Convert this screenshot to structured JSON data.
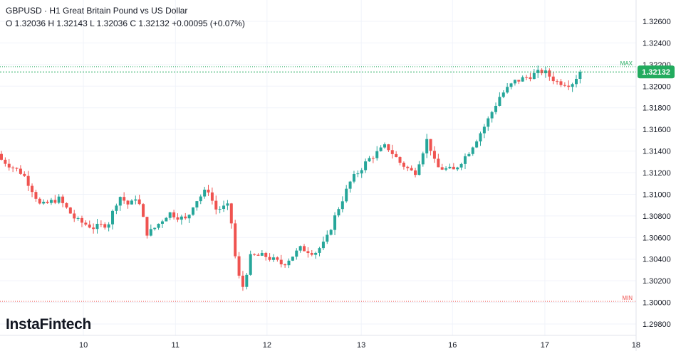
{
  "header": {
    "title": "GBPUSD · H1 Great Britain Pound vs US Dollar",
    "ohlc": "O 1.32036 H 1.32143 L 1.32036 C 1.32132  +0.00095 (+0.07%)"
  },
  "logo": "InstaFintech",
  "colors": {
    "up": "#26a69a",
    "down": "#ef5350",
    "grid": "#f0f3fa",
    "price_tag": "#22ab5e",
    "min": "#ef5350",
    "max": "#22ab5e"
  },
  "chart_data": {
    "type": "candlestick",
    "title": "GBPUSD · H1",
    "ylim": [
      1.2972,
      1.3278
    ],
    "y_ticks": [
      "1.32600",
      "1.32400",
      "1.32200",
      "1.32000",
      "1.31800",
      "1.31600",
      "1.31400",
      "1.31200",
      "1.31000",
      "1.30800",
      "1.30600",
      "1.30400",
      "1.30200",
      "1.30000",
      "1.29800"
    ],
    "x_ticks": [
      {
        "label": "10",
        "hour": 21.4
      },
      {
        "label": "11",
        "hour": 45.4
      },
      {
        "label": "12",
        "hour": 69.3
      },
      {
        "label": "13",
        "hour": 93.9
      },
      {
        "label": "16",
        "hour": 117.7
      },
      {
        "label": "17",
        "hour": 141.8
      },
      {
        "label": "18",
        "hour": 165.6
      }
    ],
    "last_price": "1.32132",
    "max_label": "MAX",
    "max_value": 1.3218,
    "min_label": "MIN",
    "min_value": 1.3001,
    "price_path": [
      {
        "hour": 0,
        "close": 1.3132
      },
      {
        "hour": 5.6,
        "close": 1.3119
      },
      {
        "hour": 8.4,
        "close": 1.3102
      },
      {
        "hour": 10.2,
        "close": 1.3089
      },
      {
        "hour": 14.9,
        "close": 1.3096
      },
      {
        "hour": 19.5,
        "close": 1.3076
      },
      {
        "hour": 24.2,
        "close": 1.3069
      },
      {
        "hour": 27.9,
        "close": 1.3073
      },
      {
        "hour": 30.7,
        "close": 1.3099
      },
      {
        "hour": 33.5,
        "close": 1.3089
      },
      {
        "hour": 35.3,
        "close": 1.3099
      },
      {
        "hour": 38.1,
        "close": 1.3063
      },
      {
        "hour": 40,
        "close": 1.3069
      },
      {
        "hour": 43.7,
        "close": 1.3083
      },
      {
        "hour": 48.3,
        "close": 1.3076
      },
      {
        "hour": 50.2,
        "close": 1.3092
      },
      {
        "hour": 53.9,
        "close": 1.3105
      },
      {
        "hour": 55.8,
        "close": 1.3086
      },
      {
        "hour": 59.5,
        "close": 1.3089
      },
      {
        "hour": 61.3,
        "close": 1.3033
      },
      {
        "hour": 62.8,
        "close": 1.3012
      },
      {
        "hour": 65.1,
        "close": 1.3043
      },
      {
        "hour": 68.8,
        "close": 1.3043
      },
      {
        "hour": 73.4,
        "close": 1.3035
      },
      {
        "hour": 78.1,
        "close": 1.305
      },
      {
        "hour": 81.8,
        "close": 1.3046
      },
      {
        "hour": 84.6,
        "close": 1.3056
      },
      {
        "hour": 87.4,
        "close": 1.3083
      },
      {
        "hour": 91.1,
        "close": 1.3112
      },
      {
        "hour": 95.7,
        "close": 1.3132
      },
      {
        "hour": 100.4,
        "close": 1.3145
      },
      {
        "hour": 104.1,
        "close": 1.3129
      },
      {
        "hour": 107.8,
        "close": 1.3119
      },
      {
        "hour": 111.2,
        "close": 1.3152
      },
      {
        "hour": 113.4,
        "close": 1.3125
      },
      {
        "hour": 118,
        "close": 1.3122
      },
      {
        "hour": 121.7,
        "close": 1.3138
      },
      {
        "hour": 126.4,
        "close": 1.3165
      },
      {
        "hour": 130.1,
        "close": 1.3191
      },
      {
        "hour": 133.8,
        "close": 1.3204
      },
      {
        "hour": 141.3,
        "close": 1.3214
      },
      {
        "hour": 145,
        "close": 1.3204
      },
      {
        "hour": 148.7,
        "close": 1.3202
      },
      {
        "hour": 151,
        "close": 1.32132
      }
    ]
  }
}
